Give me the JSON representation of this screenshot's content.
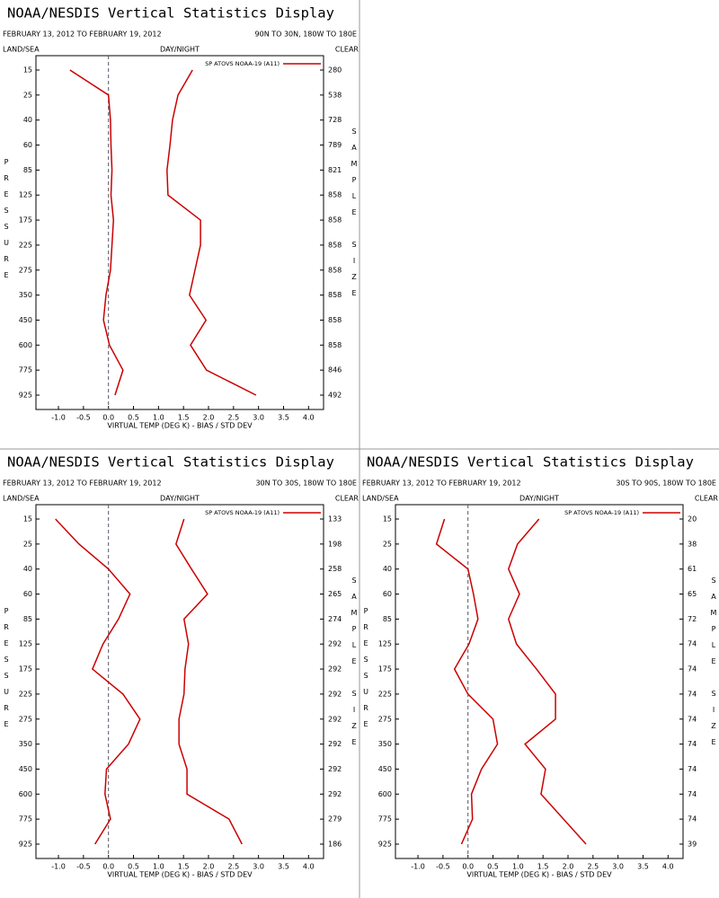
{
  "chart_data": [
    {
      "type": "line",
      "title": "NOAA/NESDIS Vertical Statistics Display",
      "date_range": "FEBRUARY 13, 2012 TO FEBRUARY 19, 2012",
      "region": "90N TO 30N, 180W TO 180E",
      "land_sea_label": "LAND/SEA",
      "day_night_label": "DAY/NIGHT",
      "clear_label": "CLEAR",
      "ylabel": "PRESSURE",
      "y2label": "SAMPLE SIZE",
      "xlabel": "VIRTUAL TEMP (DEG K) - BIAS / STD DEV",
      "categories": [
        15,
        25,
        40,
        60,
        85,
        125,
        175,
        225,
        275,
        350,
        450,
        600,
        775,
        925
      ],
      "sample_size": [
        280,
        538,
        728,
        789,
        821,
        858,
        858,
        858,
        858,
        858,
        858,
        858,
        846,
        492
      ],
      "series": [
        {
          "name": "SP ATOVS NOAA-19 (A11)",
          "color": "#cc0000",
          "values": [
            -0.77,
            0.0,
            0.04,
            0.05,
            0.07,
            0.05,
            0.1,
            0.07,
            0.04,
            -0.05,
            -0.1,
            0.02,
            0.29,
            0.13
          ],
          "std_dev": [
            1.68,
            1.39,
            1.28,
            1.23,
            1.17,
            1.19,
            1.84,
            1.84,
            1.73,
            1.62,
            1.95,
            1.64,
            1.96,
            2.95
          ]
        }
      ],
      "xlim": [
        -1.45,
        4.3
      ],
      "xticks": [
        {
          "value": -1,
          "label": "-1.0"
        },
        -0.5,
        {
          "value": 0,
          "label": "0.0"
        },
        0.5,
        {
          "value": 1,
          "label": "1.0"
        },
        1.5,
        {
          "value": 2,
          "label": "2.0"
        },
        2.5,
        {
          "value": 3,
          "label": "3.0"
        },
        3.5,
        {
          "value": 4,
          "label": "4.0"
        }
      ]
    },
    {
      "type": "line",
      "title": "NOAA/NESDIS Vertical Statistics Display",
      "date_range": "FEBRUARY 13, 2012 TO FEBRUARY 19, 2012",
      "region": "30N TO 30S, 180W TO 180E",
      "land_sea_label": "LAND/SEA",
      "day_night_label": "DAY/NIGHT",
      "clear_label": "CLEAR",
      "ylabel": "PRESSURE",
      "y2label": "SAMPLE SIZE",
      "xlabel": "VIRTUAL TEMP (DEG K) - BIAS / STD DEV",
      "categories": [
        15,
        25,
        40,
        60,
        85,
        125,
        175,
        225,
        275,
        350,
        450,
        600,
        775,
        925
      ],
      "sample_size": [
        133,
        198,
        258,
        265,
        274,
        292,
        292,
        292,
        292,
        292,
        292,
        292,
        279,
        186
      ],
      "series": [
        {
          "name": "SP ATOVS NOAA-19 (A11)",
          "color": "#cc0000",
          "values": [
            -1.06,
            -0.59,
            0.0,
            0.43,
            0.2,
            -0.11,
            -0.32,
            0.29,
            0.63,
            0.4,
            -0.04,
            -0.07,
            0.04,
            -0.27
          ],
          "std_dev": [
            1.51,
            1.35,
            1.66,
            1.98,
            1.51,
            1.6,
            1.53,
            1.51,
            1.41,
            1.41,
            1.57,
            1.57,
            2.41,
            2.67
          ]
        }
      ],
      "xlim": [
        -1.45,
        4.3
      ],
      "xticks": [
        {
          "value": -1,
          "label": "-1.0"
        },
        -0.5,
        {
          "value": 0,
          "label": "0.0"
        },
        0.5,
        {
          "value": 1,
          "label": "1.0"
        },
        1.5,
        {
          "value": 2,
          "label": "2.0"
        },
        2.5,
        {
          "value": 3,
          "label": "3.0"
        },
        3.5,
        {
          "value": 4,
          "label": "4.0"
        }
      ]
    },
    {
      "type": "line",
      "title": "NOAA/NESDIS Vertical Statistics Display",
      "date_range": "FEBRUARY 13, 2012 TO FEBRUARY 19, 2012",
      "region": "30S TO 90S, 180W TO 180E",
      "land_sea_label": "LAND/SEA",
      "day_night_label": "DAY/NIGHT",
      "clear_label": "CLEAR",
      "ylabel": "PRESSURE",
      "y2label": "SAMPLE SIZE",
      "xlabel": "VIRTUAL TEMP (DEG K) - BIAS / STD DEV",
      "categories": [
        15,
        25,
        40,
        60,
        85,
        125,
        175,
        225,
        275,
        350,
        450,
        600,
        775,
        925
      ],
      "sample_size": [
        20,
        38,
        61,
        65,
        72,
        74,
        74,
        74,
        74,
        74,
        74,
        74,
        74,
        39
      ],
      "series": [
        {
          "name": "SP ATOVS NOAA-19 (A11)",
          "color": "#cc0000",
          "values": [
            -0.47,
            -0.63,
            0.0,
            0.11,
            0.2,
            0.02,
            -0.27,
            0.0,
            0.5,
            0.59,
            0.27,
            0.07,
            0.09,
            -0.13
          ],
          "std_dev": [
            1.42,
            0.99,
            0.81,
            1.03,
            0.81,
            0.97,
            1.37,
            1.75,
            1.75,
            1.14,
            1.55,
            1.46,
            1.91,
            2.36
          ]
        }
      ],
      "xlim": [
        -1.45,
        4.3
      ],
      "xticks": [
        {
          "value": -1,
          "label": "-1.0"
        },
        -0.5,
        {
          "value": 0,
          "label": "0.0"
        },
        0.5,
        {
          "value": 1,
          "label": "1.0"
        },
        1.5,
        {
          "value": 2,
          "label": "2.0"
        },
        2.5,
        {
          "value": 3,
          "label": "3.0"
        },
        3.5,
        {
          "value": 4,
          "label": "4.0"
        }
      ]
    }
  ]
}
